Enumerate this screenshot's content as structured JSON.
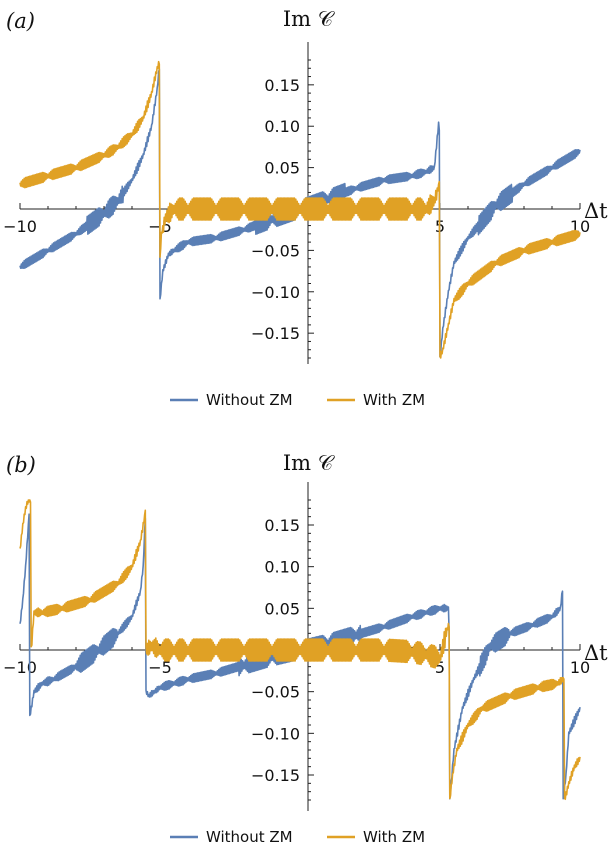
{
  "colors": {
    "without": "#5a7fb5",
    "with": "#e0a125",
    "axis": "#222222"
  },
  "legend": {
    "without": "Without ZM",
    "with": "With ZM"
  },
  "chart_data": [
    {
      "type": "line",
      "panel_label": "(a)",
      "ylabel": "Im 𝒞",
      "xlabel": "Δt",
      "xlim": [
        -10,
        10
      ],
      "ylim": [
        -0.18,
        0.18
      ],
      "xticks": [
        -10,
        -5,
        5,
        10
      ],
      "yticks": [
        -0.15,
        -0.1,
        -0.05,
        0.05,
        0.1,
        0.15
      ],
      "grid": false,
      "legend_position": "bottom-center",
      "series": [
        {
          "name": "Without ZM",
          "color": "#5a7fb5",
          "x": [
            -10,
            -9,
            -8,
            -7,
            -6.5,
            -6,
            -5.6,
            -5.3,
            -5.1,
            -5.0,
            -5.0,
            -4.9,
            -4.7,
            -4.5,
            -4,
            -3,
            -2,
            -1,
            0,
            1,
            2,
            3,
            4,
            4.5,
            4.8,
            4.97,
            5.0,
            5.0,
            5.1,
            5.3,
            5.5,
            6,
            7,
            8,
            9,
            10
          ],
          "y": [
            -0.07,
            -0.05,
            -0.03,
            -0.005,
            0.01,
            0.035,
            0.065,
            0.1,
            0.145,
            0.18,
            -0.11,
            -0.075,
            -0.055,
            -0.05,
            -0.04,
            -0.035,
            -0.025,
            -0.012,
            0.0,
            0.012,
            0.025,
            0.035,
            0.04,
            0.045,
            0.05,
            0.11,
            0.03,
            -0.18,
            -0.145,
            -0.1,
            -0.065,
            -0.035,
            0.005,
            0.03,
            0.05,
            0.07
          ],
          "oscillation": 0.005
        },
        {
          "name": "With ZM",
          "color": "#e0a125",
          "x": [
            -10,
            -9,
            -8,
            -7,
            -6.5,
            -6,
            -5.6,
            -5.3,
            -5.1,
            -5.0,
            -5.0,
            -4.95,
            -4.8,
            -4.5,
            -4,
            -3,
            -2,
            -1,
            0,
            1,
            2,
            3,
            4,
            4.5,
            4.8,
            4.97,
            5.0,
            5.0,
            5.1,
            5.3,
            5.5,
            6,
            7,
            8,
            9,
            10
          ],
          "y": [
            0.03,
            0.04,
            0.05,
            0.065,
            0.075,
            0.09,
            0.11,
            0.14,
            0.17,
            0.18,
            -0.06,
            -0.03,
            -0.01,
            0.0,
            0.0,
            0.0,
            0.0,
            0.0,
            0.0,
            0.0,
            0.0,
            0.0,
            0.0,
            0.0,
            0.01,
            0.03,
            0.06,
            -0.18,
            -0.17,
            -0.14,
            -0.11,
            -0.09,
            -0.065,
            -0.05,
            -0.04,
            -0.03
          ],
          "oscillation": 0.006
        }
      ]
    },
    {
      "type": "line",
      "panel_label": "(b)",
      "ylabel": "Im 𝒞",
      "xlabel": "Δt",
      "xlim": [
        -10,
        10
      ],
      "ylim": [
        -0.18,
        0.18
      ],
      "xticks": [
        -10,
        -5,
        5,
        10
      ],
      "yticks": [
        -0.15,
        -0.1,
        -0.05,
        0.05,
        0.1,
        0.15
      ],
      "grid": false,
      "legend_position": "bottom-center",
      "series": [
        {
          "name": "Without ZM",
          "color": "#5a7fb5",
          "x": [
            -10,
            -9.9,
            -9.8,
            -9.7,
            -9.65,
            -9.65,
            -9.5,
            -9.2,
            -8.8,
            -8,
            -7.2,
            -6.5,
            -6.0,
            -5.7,
            -5.6,
            -5.55,
            -5.5,
            -5.5,
            -5.4,
            -5.2,
            -5.0,
            -4.5,
            -4,
            -3,
            -2,
            -1,
            0,
            1,
            2,
            3,
            4,
            4.5,
            5.0,
            5.3,
            5.35,
            5.35,
            5.5,
            5.8,
            6.2,
            6.8,
            7.5,
            8.3,
            9.0,
            9.3,
            9.4,
            9.4,
            9.5,
            9.6,
            10
          ],
          "y": [
            0.03,
            0.06,
            0.1,
            0.15,
            0.18,
            -0.08,
            -0.05,
            -0.04,
            -0.035,
            -0.02,
            0.0,
            0.02,
            0.04,
            0.07,
            0.1,
            0.14,
            0.18,
            -0.05,
            -0.055,
            -0.05,
            -0.045,
            -0.04,
            -0.035,
            -0.028,
            -0.018,
            -0.008,
            0.0,
            0.008,
            0.018,
            0.028,
            0.04,
            0.045,
            0.05,
            0.05,
            0.0,
            -0.18,
            -0.12,
            -0.07,
            -0.035,
            0.005,
            0.02,
            0.03,
            0.04,
            0.05,
            0.08,
            -0.18,
            -0.15,
            -0.1,
            -0.07
          ],
          "oscillation": 0.005
        },
        {
          "name": "With ZM",
          "color": "#e0a125",
          "x": [
            -10,
            -9.9,
            -9.8,
            -9.7,
            -9.6,
            -9.6,
            -9.5,
            -9.2,
            -8.5,
            -7.5,
            -6.5,
            -6.0,
            -5.7,
            -5.55,
            -5.5,
            -5.5,
            -5.3,
            -5.0,
            -4.5,
            -4,
            -3,
            -2,
            -1,
            0,
            1,
            2,
            3,
            4,
            4.5,
            5.0,
            5.3,
            5.35,
            5.35,
            5.45,
            5.6,
            6.0,
            6.5,
            7.5,
            8.5,
            9.2,
            9.4,
            9.45,
            9.45,
            9.6,
            9.8,
            10
          ],
          "y": [
            0.12,
            0.15,
            0.17,
            0.18,
            0.18,
            0.0,
            0.045,
            0.045,
            0.05,
            0.06,
            0.08,
            0.1,
            0.13,
            0.16,
            0.18,
            0.0,
            0.005,
            0.0,
            0.0,
            0.0,
            0.0,
            0.0,
            0.0,
            0.0,
            0.0,
            0.0,
            0.0,
            -0.002,
            -0.005,
            -0.01,
            0.03,
            0.03,
            -0.18,
            -0.15,
            -0.12,
            -0.09,
            -0.07,
            -0.055,
            -0.045,
            -0.04,
            -0.035,
            -0.03,
            -0.18,
            -0.16,
            -0.14,
            -0.13
          ],
          "oscillation": 0.006
        }
      ]
    }
  ]
}
